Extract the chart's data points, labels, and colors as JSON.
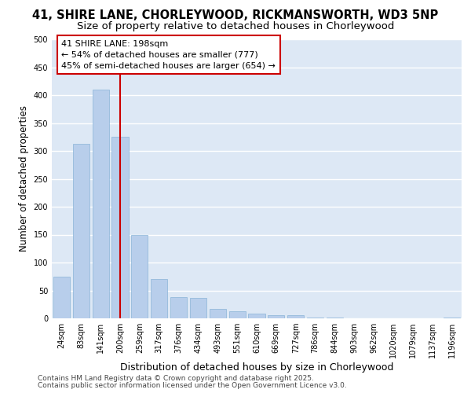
{
  "title1": "41, SHIRE LANE, CHORLEYWOOD, RICKMANSWORTH, WD3 5NP",
  "title2": "Size of property relative to detached houses in Chorleywood",
  "xlabel": "Distribution of detached houses by size in Chorleywood",
  "ylabel": "Number of detached properties",
  "categories": [
    "24sqm",
    "83sqm",
    "141sqm",
    "200sqm",
    "259sqm",
    "317sqm",
    "376sqm",
    "434sqm",
    "493sqm",
    "551sqm",
    "610sqm",
    "669sqm",
    "727sqm",
    "786sqm",
    "844sqm",
    "903sqm",
    "962sqm",
    "1020sqm",
    "1079sqm",
    "1137sqm",
    "1196sqm"
  ],
  "values": [
    75,
    313,
    410,
    325,
    150,
    70,
    38,
    36,
    17,
    12,
    9,
    5,
    6,
    2,
    1,
    0,
    0,
    0,
    0,
    0,
    2
  ],
  "bar_color": "#b8ceeb",
  "bar_edge_color": "#8ab4d8",
  "vline_x_index": 3,
  "vline_color": "#cc0000",
  "annotation_text": "41 SHIRE LANE: 198sqm\n← 54% of detached houses are smaller (777)\n45% of semi-detached houses are larger (654) →",
  "annotation_box_color": "#cc0000",
  "background_color": "#dde8f5",
  "grid_color": "#ffffff",
  "ylim": [
    0,
    500
  ],
  "yticks": [
    0,
    50,
    100,
    150,
    200,
    250,
    300,
    350,
    400,
    450,
    500
  ],
  "footer_line1": "Contains HM Land Registry data © Crown copyright and database right 2025.",
  "footer_line2": "Contains public sector information licensed under the Open Government Licence v3.0.",
  "title1_fontsize": 10.5,
  "title2_fontsize": 9.5,
  "xlabel_fontsize": 9,
  "ylabel_fontsize": 8.5,
  "tick_fontsize": 7,
  "annotation_fontsize": 8,
  "footer_fontsize": 6.5
}
